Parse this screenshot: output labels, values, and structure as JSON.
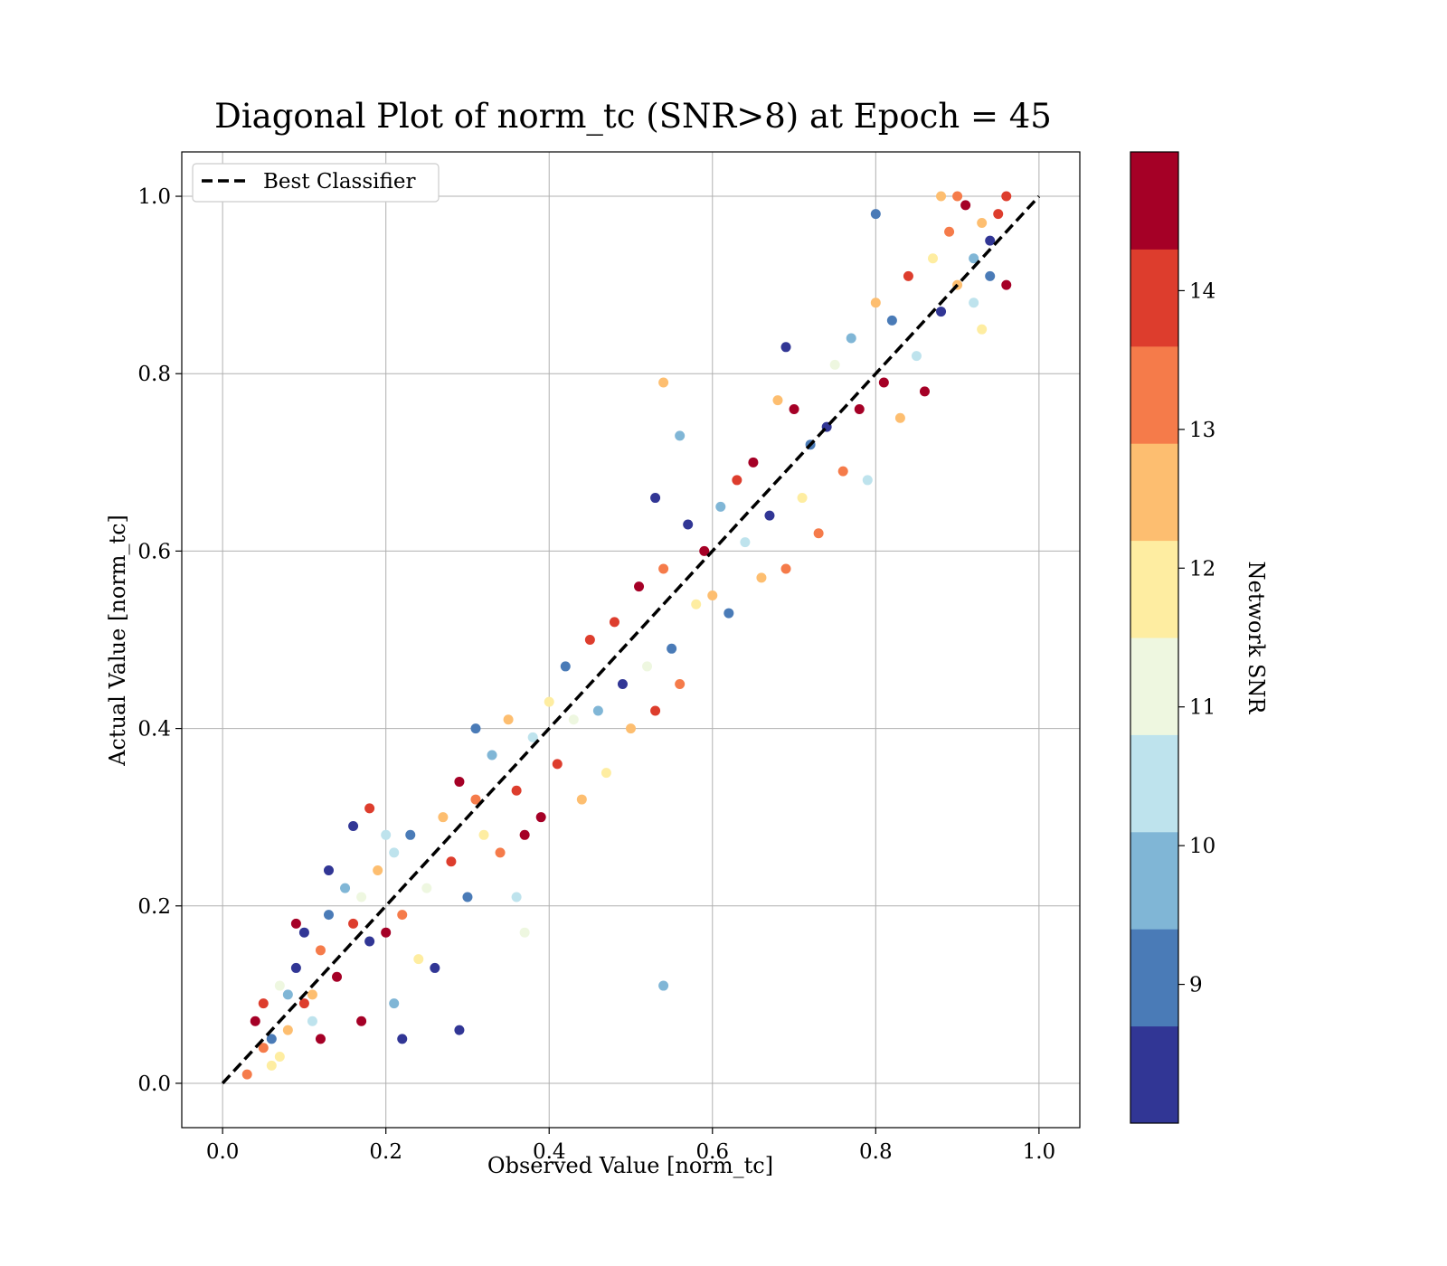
{
  "chart_data": {
    "type": "scatter",
    "title": "Diagonal Plot of norm_tc (SNR>8) at Epoch = 45",
    "xlabel": "Observed Value [norm_tc]",
    "ylabel": "Actual Value [norm_tc]",
    "xlim": [
      -0.05,
      1.05
    ],
    "ylim": [
      -0.05,
      1.05
    ],
    "x_ticks": [
      "0.0",
      "0.2",
      "0.4",
      "0.6",
      "0.8",
      "1.0"
    ],
    "y_ticks": [
      "0.0",
      "0.2",
      "0.4",
      "0.6",
      "0.8",
      "1.0"
    ],
    "grid": true,
    "legend": {
      "placement": "upper-left",
      "entries": [
        {
          "label": "Best Classifier",
          "style": "dashed",
          "color": "#000000"
        }
      ]
    },
    "reference_line": {
      "name": "Best Classifier",
      "x": [
        0.0,
        1.0
      ],
      "y": [
        0.0,
        1.0
      ]
    },
    "colorbar": {
      "label": "Network SNR",
      "range": [
        8,
        15
      ],
      "ticks": [
        "9",
        "10",
        "11",
        "12",
        "13",
        "14"
      ],
      "bins": [
        {
          "from": 8.0,
          "to": 8.7,
          "color": "#313695"
        },
        {
          "from": 8.7,
          "to": 9.4,
          "color": "#4a7bb7"
        },
        {
          "from": 9.4,
          "to": 10.1,
          "color": "#80b6d6"
        },
        {
          "from": 10.1,
          "to": 10.8,
          "color": "#bee3ed"
        },
        {
          "from": 10.8,
          "to": 11.5,
          "color": "#eef7e0"
        },
        {
          "from": 11.5,
          "to": 12.2,
          "color": "#feeda1"
        },
        {
          "from": 12.2,
          "to": 12.9,
          "color": "#fdbe70"
        },
        {
          "from": 12.9,
          "to": 13.6,
          "color": "#f57b4a"
        },
        {
          "from": 13.6,
          "to": 14.3,
          "color": "#dd3d2d"
        },
        {
          "from": 14.3,
          "to": 15.0,
          "color": "#a50026"
        }
      ]
    },
    "series": [
      {
        "points": [
          [
            0.03,
            0.01,
            13
          ],
          [
            0.04,
            0.07,
            14.5
          ],
          [
            0.05,
            0.09,
            14
          ],
          [
            0.06,
            0.05,
            9
          ],
          [
            0.07,
            0.11,
            11
          ],
          [
            0.08,
            0.06,
            12.5
          ],
          [
            0.09,
            0.13,
            8.5
          ],
          [
            0.1,
            0.09,
            14
          ],
          [
            0.11,
            0.07,
            10.5
          ],
          [
            0.12,
            0.15,
            13
          ],
          [
            0.13,
            0.19,
            9
          ],
          [
            0.14,
            0.12,
            14.5
          ],
          [
            0.06,
            0.02,
            12
          ],
          [
            0.09,
            0.18,
            14.6
          ],
          [
            0.1,
            0.17,
            8.5
          ],
          [
            0.08,
            0.1,
            10
          ],
          [
            0.05,
            0.04,
            13.5
          ],
          [
            0.11,
            0.1,
            12.2
          ],
          [
            0.12,
            0.05,
            14.4
          ],
          [
            0.07,
            0.03,
            11.8
          ],
          [
            0.15,
            0.22,
            9.8
          ],
          [
            0.16,
            0.18,
            14.2
          ],
          [
            0.17,
            0.21,
            11
          ],
          [
            0.18,
            0.16,
            8.3
          ],
          [
            0.19,
            0.24,
            12.8
          ],
          [
            0.2,
            0.17,
            14.7
          ],
          [
            0.21,
            0.26,
            10.3
          ],
          [
            0.22,
            0.19,
            13.3
          ],
          [
            0.23,
            0.28,
            8.9
          ],
          [
            0.24,
            0.14,
            12
          ],
          [
            0.13,
            0.24,
            8.4
          ],
          [
            0.16,
            0.29,
            8.6
          ],
          [
            0.18,
            0.31,
            14
          ],
          [
            0.2,
            0.28,
            10.5
          ],
          [
            0.17,
            0.07,
            14.6
          ],
          [
            0.22,
            0.05,
            8.4
          ],
          [
            0.29,
            0.06,
            8.5
          ],
          [
            0.26,
            0.13,
            8.3
          ],
          [
            0.21,
            0.09,
            9.8
          ],
          [
            0.25,
            0.22,
            11.2
          ],
          [
            0.27,
            0.3,
            12.6
          ],
          [
            0.28,
            0.25,
            13.7
          ],
          [
            0.29,
            0.34,
            14.6
          ],
          [
            0.3,
            0.21,
            8.7
          ],
          [
            0.31,
            0.32,
            13.2
          ],
          [
            0.32,
            0.28,
            11.9
          ],
          [
            0.33,
            0.37,
            9.4
          ],
          [
            0.34,
            0.26,
            13.4
          ],
          [
            0.35,
            0.41,
            12.3
          ],
          [
            0.36,
            0.33,
            14.2
          ],
          [
            0.37,
            0.28,
            14.4
          ],
          [
            0.38,
            0.39,
            10.2
          ],
          [
            0.36,
            0.21,
            10.6
          ],
          [
            0.37,
            0.17,
            10.9
          ],
          [
            0.31,
            0.4,
            8.8
          ],
          [
            0.39,
            0.3,
            14.5
          ],
          [
            0.4,
            0.43,
            12.1
          ],
          [
            0.41,
            0.36,
            13.9
          ],
          [
            0.42,
            0.47,
            8.9
          ],
          [
            0.43,
            0.41,
            11.3
          ],
          [
            0.44,
            0.32,
            12.7
          ],
          [
            0.45,
            0.5,
            14.1
          ],
          [
            0.46,
            0.42,
            9.6
          ],
          [
            0.47,
            0.35,
            12
          ],
          [
            0.48,
            0.52,
            13.6
          ],
          [
            0.49,
            0.45,
            8.6
          ],
          [
            0.5,
            0.4,
            12.4
          ],
          [
            0.51,
            0.56,
            14.6
          ],
          [
            0.52,
            0.47,
            10.8
          ],
          [
            0.53,
            0.42,
            14
          ],
          [
            0.54,
            0.58,
            13
          ],
          [
            0.55,
            0.49,
            9.2
          ],
          [
            0.56,
            0.45,
            12.9
          ],
          [
            0.57,
            0.63,
            8.4
          ],
          [
            0.58,
            0.54,
            11.7
          ],
          [
            0.56,
            0.73,
            9.9
          ],
          [
            0.54,
            0.79,
            12.4
          ],
          [
            0.54,
            0.11,
            9.7
          ],
          [
            0.53,
            0.66,
            8.5
          ],
          [
            0.59,
            0.6,
            14.3
          ],
          [
            0.6,
            0.55,
            12.2
          ],
          [
            0.61,
            0.65,
            9.5
          ],
          [
            0.62,
            0.53,
            8.8
          ],
          [
            0.63,
            0.68,
            14.1
          ],
          [
            0.64,
            0.61,
            10.4
          ],
          [
            0.65,
            0.7,
            14.7
          ],
          [
            0.66,
            0.57,
            12.6
          ],
          [
            0.67,
            0.64,
            8.3
          ],
          [
            0.68,
            0.77,
            12.5
          ],
          [
            0.69,
            0.58,
            13.5
          ],
          [
            0.69,
            0.83,
            8.5
          ],
          [
            0.7,
            0.76,
            14.5
          ],
          [
            0.71,
            0.66,
            11.9
          ],
          [
            0.72,
            0.72,
            9.3
          ],
          [
            0.73,
            0.62,
            13.1
          ],
          [
            0.74,
            0.74,
            8.2
          ],
          [
            0.75,
            0.81,
            11.4
          ],
          [
            0.76,
            0.69,
            12.9
          ],
          [
            0.77,
            0.84,
            9.8
          ],
          [
            0.78,
            0.76,
            14.6
          ],
          [
            0.79,
            0.68,
            10.3
          ],
          [
            0.8,
            0.88,
            12.2
          ],
          [
            0.8,
            0.98,
            9.1
          ],
          [
            0.81,
            0.79,
            14.3
          ],
          [
            0.82,
            0.86,
            8.7
          ],
          [
            0.83,
            0.75,
            12.4
          ],
          [
            0.84,
            0.91,
            13.7
          ],
          [
            0.85,
            0.82,
            10.1
          ],
          [
            0.86,
            0.78,
            14.5
          ],
          [
            0.87,
            0.93,
            11.5
          ],
          [
            0.88,
            0.87,
            8.4
          ],
          [
            0.89,
            0.96,
            13.2
          ],
          [
            0.9,
            0.9,
            12.6
          ],
          [
            0.91,
            0.99,
            14.8
          ],
          [
            0.92,
            0.93,
            9.4
          ],
          [
            0.93,
            0.97,
            12.8
          ],
          [
            0.94,
            0.95,
            8.6
          ],
          [
            0.95,
            0.98,
            14.2
          ],
          [
            0.96,
            1.0,
            13.6
          ],
          [
            0.96,
            0.9,
            14.6
          ],
          [
            0.9,
            1.0,
            13
          ],
          [
            0.88,
            1.0,
            12.8
          ],
          [
            0.92,
            0.88,
            10.5
          ],
          [
            0.93,
            0.85,
            12.1
          ],
          [
            0.94,
            0.91,
            8.9
          ]
        ]
      }
    ]
  }
}
